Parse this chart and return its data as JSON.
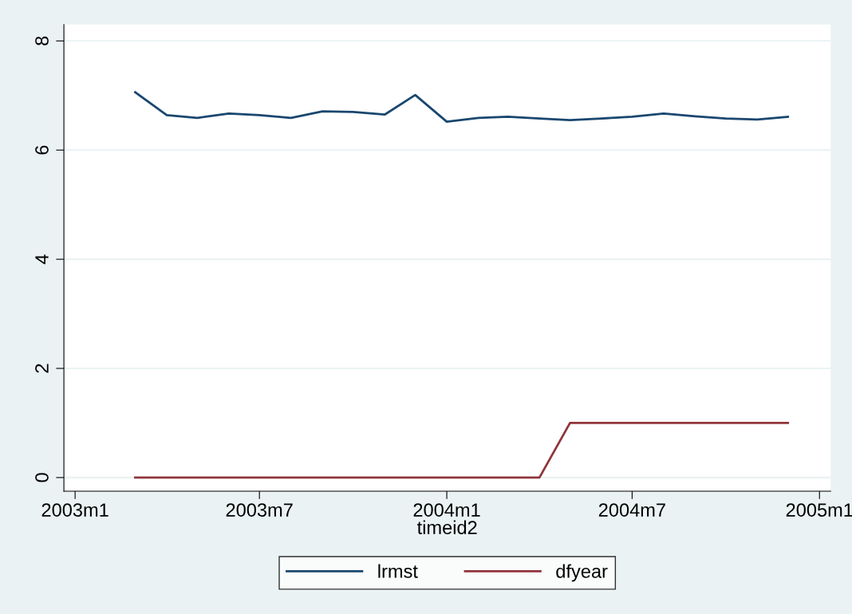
{
  "chart_data": {
    "type": "line",
    "xlabel": "timeid2",
    "x": [
      "2003-03",
      "2003-04",
      "2003-05",
      "2003-06",
      "2003-07",
      "2003-08",
      "2003-09",
      "2003-10",
      "2003-11",
      "2003-12",
      "2004-01",
      "2004-02",
      "2004-03",
      "2004-04",
      "2004-05",
      "2004-06",
      "2004-07",
      "2004-08",
      "2004-09",
      "2004-10",
      "2004-11",
      "2004-12"
    ],
    "series": [
      {
        "name": "lrmst",
        "color": "#1a476f",
        "values": [
          7.06,
          6.64,
          6.59,
          6.67,
          6.64,
          6.59,
          6.71,
          6.7,
          6.65,
          7.01,
          6.52,
          6.59,
          6.61,
          6.58,
          6.55,
          6.58,
          6.61,
          6.67,
          6.62,
          6.58,
          6.56,
          6.61
        ]
      },
      {
        "name": "dfyear",
        "color": "#90353b",
        "values": [
          0,
          0,
          0,
          0,
          0,
          0,
          0,
          0,
          0,
          0,
          0,
          0,
          0,
          0,
          1,
          1,
          1,
          1,
          1,
          1,
          1,
          1
        ]
      }
    ],
    "xlim": [
      "2002-12-21",
      "2005-01-12"
    ],
    "xticks": [
      {
        "value": "2003-01",
        "label": "2003m1"
      },
      {
        "value": "2003-07",
        "label": "2003m7"
      },
      {
        "value": "2004-01",
        "label": "2004m1"
      },
      {
        "value": "2004-07",
        "label": "2004m7"
      },
      {
        "value": "2005-01",
        "label": "2005m1"
      }
    ],
    "ylim": [
      -0.25,
      8.3
    ],
    "yticks": [
      0,
      2,
      4,
      6,
      8
    ],
    "grid": "y",
    "legend": "bottom",
    "line_style": "solid",
    "marker": "none"
  }
}
